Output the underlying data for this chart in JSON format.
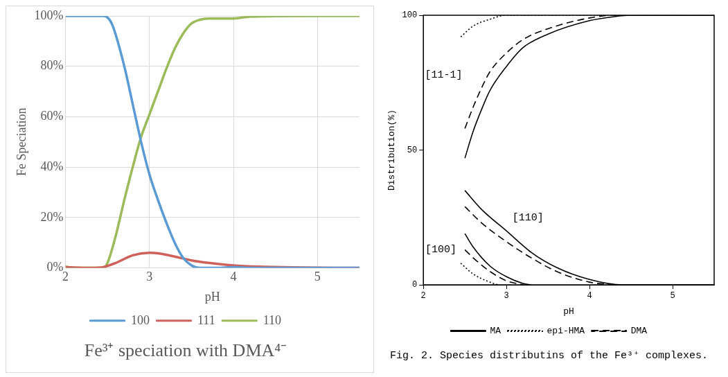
{
  "chart_data": [
    {
      "type": "line",
      "title": "Fe³⁺ speciation with DMA⁴⁻",
      "xlabel": "pH",
      "ylabel": "Fe Speciation",
      "xlim": [
        2,
        5.5
      ],
      "xticks": [
        2,
        3,
        4,
        5
      ],
      "ylim": [
        0,
        100
      ],
      "yticks": [
        {
          "value": 0,
          "label": "0%"
        },
        {
          "value": 20,
          "label": "20%"
        },
        {
          "value": 40,
          "label": "40%"
        },
        {
          "value": 60,
          "label": "60%"
        },
        {
          "value": 80,
          "label": "80%"
        },
        {
          "value": 100,
          "label": "100%"
        }
      ],
      "grid": true,
      "legend": "bottom",
      "marker": "none",
      "series": [
        {
          "name": "100",
          "color": "#5b9bd5",
          "x": [
            2,
            2.3,
            2.45,
            2.55,
            2.7,
            2.8,
            2.9,
            3.0,
            3.1,
            3.2,
            3.3,
            3.4,
            3.5,
            3.6,
            3.8,
            4.0,
            4.2,
            5.5
          ],
          "values": [
            100,
            100,
            100,
            97,
            80,
            65,
            50,
            37,
            27,
            18,
            10,
            4,
            1,
            0,
            0,
            0.3,
            0,
            0
          ]
        },
        {
          "name": "111",
          "color": "#d0605a",
          "x": [
            2,
            2.3,
            2.45,
            2.6,
            2.8,
            3.0,
            3.1,
            3.3,
            3.5,
            3.7,
            4.0,
            4.3,
            4.7,
            5.5
          ],
          "values": [
            0.3,
            0,
            0.3,
            2,
            5,
            6,
            5.8,
            4.5,
            3,
            2,
            1,
            0.5,
            0.2,
            0
          ]
        },
        {
          "name": "110",
          "color": "#9bbb59",
          "x": [
            2,
            2.1,
            2.45,
            2.5,
            2.6,
            2.7,
            2.8,
            2.9,
            3.0,
            3.1,
            3.2,
            3.3,
            3.4,
            3.5,
            3.6,
            3.7,
            3.9,
            4.0,
            4.2,
            4.5,
            5.5
          ],
          "values": [
            0.5,
            0,
            0,
            2,
            13,
            27,
            40,
            52,
            61,
            70,
            79,
            87,
            93,
            97,
            98.5,
            99,
            99,
            99,
            99.7,
            99.9,
            100
          ]
        }
      ]
    },
    {
      "type": "line",
      "title": "Fig. 2. Species distributins of the Fe³⁺ complexes.",
      "xlabel": "pH",
      "ylabel": "Distribution(%)",
      "xlim": [
        2,
        5.5
      ],
      "xticks": [
        2,
        3,
        4,
        5
      ],
      "ylim": [
        0,
        100
      ],
      "yticks": [
        0,
        50,
        100
      ],
      "grid": false,
      "legend": "bottom",
      "marker": "none",
      "annotations": [
        "[11-1]",
        "[110]",
        "[100]"
      ],
      "series": [
        {
          "name": "MA",
          "color": "#000000",
          "line_style": "solid",
          "x": [
            2.5,
            2.6,
            2.7,
            2.8,
            3.0,
            3.2,
            3.5,
            4.0,
            4.3,
            4.5,
            5.5
          ],
          "values": [
            47,
            57,
            65,
            72,
            81,
            88,
            93,
            98,
            99.5,
            100,
            100
          ]
        },
        {
          "name": "epi-HMA",
          "color": "#000000",
          "line_style": "dotted",
          "x": [
            2.45,
            2.6,
            2.8,
            3.0,
            5.5
          ],
          "values": [
            92,
            96,
            98.5,
            100,
            100
          ]
        },
        {
          "name": "DMA",
          "color": "#000000",
          "line_style": "dashed",
          "x": [
            2.5,
            2.6,
            2.7,
            2.8,
            3.0,
            3.2,
            3.5,
            4.0,
            4.3,
            5.5
          ],
          "values": [
            58,
            66,
            73,
            79,
            86,
            91,
            95,
            99,
            100,
            100
          ]
        },
        {
          "color": "#000000",
          "line_style": "solid",
          "x": [
            2.5,
            2.7,
            3.0,
            3.3,
            3.6,
            4.0,
            4.4,
            5.5
          ],
          "values": [
            35,
            28,
            20,
            12,
            6.5,
            2,
            0,
            0
          ]
        },
        {
          "color": "#000000",
          "line_style": "dashed",
          "x": [
            2.5,
            2.7,
            3.0,
            3.3,
            3.6,
            4.0,
            4.3
          ],
          "values": [
            29,
            23,
            16,
            10,
            5,
            1,
            0
          ]
        },
        {
          "color": "#000000",
          "line_style": "solid",
          "x": [
            2.5,
            2.6,
            2.8,
            3.0,
            3.2,
            3.3
          ],
          "values": [
            19,
            14,
            7,
            3,
            0.5,
            0
          ]
        },
        {
          "color": "#000000",
          "line_style": "dashed",
          "x": [
            2.5,
            2.6,
            2.8,
            3.0,
            3.2
          ],
          "values": [
            13,
            10,
            5,
            1.5,
            0
          ]
        },
        {
          "color": "#000000",
          "line_style": "dotted",
          "x": [
            2.45,
            2.6,
            2.8,
            2.9
          ],
          "values": [
            8,
            4,
            1,
            0
          ]
        }
      ]
    }
  ]
}
